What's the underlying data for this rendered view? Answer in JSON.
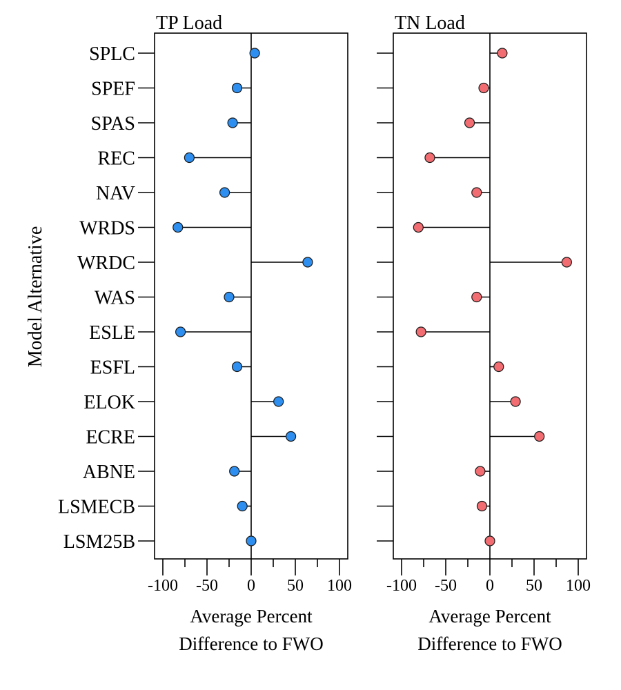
{
  "chart_data": {
    "type": "scatter",
    "subtype": "lollipop",
    "ylabel": "Model Alternative",
    "xlabel_lines": [
      "Average Percent",
      "Difference to FWO"
    ],
    "categories": [
      "SPLC",
      "SPEF",
      "SPAS",
      "REC",
      "NAV",
      "WRDS",
      "WRDC",
      "WAS",
      "ESLE",
      "ESFL",
      "ELOK",
      "ECRE",
      "ABNE",
      "LSMECB",
      "LSM25B"
    ],
    "xlim": [
      -100,
      100
    ],
    "xticks": [
      -100,
      -50,
      0,
      50,
      100
    ],
    "xtick_labels": [
      "-100",
      "-50",
      "0",
      "50",
      "100"
    ],
    "grid": false,
    "panels": [
      {
        "title": "TP Load",
        "color": "#2E8FF0",
        "values": [
          4,
          -16,
          -21,
          -70,
          -30,
          -83,
          64,
          -25,
          -80,
          -16,
          31,
          45,
          -19,
          -10,
          0
        ]
      },
      {
        "title": "TN Load",
        "color": "#F26D72",
        "values": [
          14,
          -7,
          -23,
          -68,
          -15,
          -81,
          87,
          -15,
          -78,
          10,
          29,
          56,
          -11,
          -9,
          0
        ]
      }
    ]
  }
}
